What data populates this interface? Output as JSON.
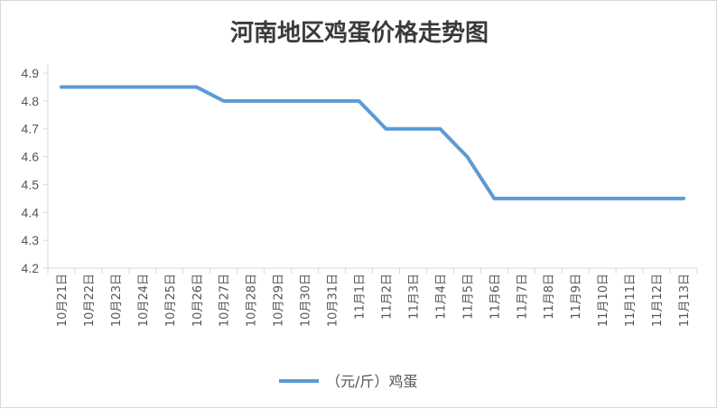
{
  "chart_data": {
    "type": "line",
    "title": "河南地区鸡蛋价格走势图",
    "xlabel": "",
    "ylabel": "",
    "categories": [
      "10月21日",
      "10月22日",
      "10月23日",
      "10月24日",
      "10月25日",
      "10月26日",
      "10月27日",
      "10月28日",
      "10月29日",
      "10月30日",
      "10月31日",
      "11月1日",
      "11月2日",
      "11月3日",
      "11月4日",
      "11月5日",
      "11月6日",
      "11月7日",
      "11月8日",
      "11月9日",
      "11月10日",
      "11月11日",
      "11月12日",
      "11月13日"
    ],
    "series": [
      {
        "name": "（元/斤）鸡蛋",
        "color": "#5b9bd5",
        "values": [
          4.85,
          4.85,
          4.85,
          4.85,
          4.85,
          4.85,
          4.8,
          4.8,
          4.8,
          4.8,
          4.8,
          4.8,
          4.7,
          4.7,
          4.7,
          4.6,
          4.45,
          4.45,
          4.45,
          4.45,
          4.45,
          4.45,
          4.45,
          4.45
        ]
      }
    ],
    "ylim": [
      4.2,
      4.9
    ],
    "yticks": [
      "4.2",
      "4.3",
      "4.4",
      "4.5",
      "4.6",
      "4.7",
      "4.8",
      "4.9"
    ],
    "grid": false,
    "legend": "bottom-center"
  }
}
